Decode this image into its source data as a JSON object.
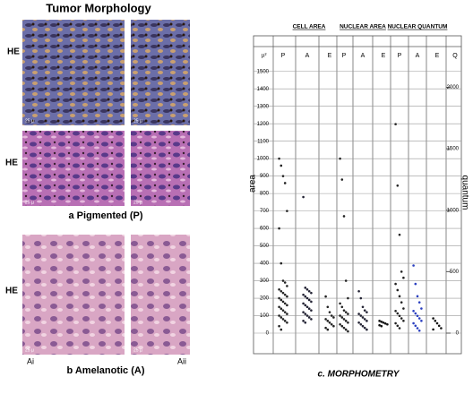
{
  "figure": {
    "title": "Tumor Morphology",
    "row_labels": [
      "HE",
      "HE",
      "HE"
    ],
    "caption_a": "a Pigmented (P)",
    "caption_b": "b Amelanotic (A)",
    "sub_labels": [
      "Ai",
      "Aii"
    ],
    "scale_labels": [
      "25 µ",
      "25 µ",
      "25 µ",
      "25 µ",
      "25 µ",
      "25 µ"
    ]
  },
  "chart_data": {
    "type": "strip",
    "caption": "c. MORPHOMETRY",
    "ylabel": "area",
    "y2label": "quantum",
    "unit_label": "µ²",
    "y2_header": "Q",
    "groups": [
      "CELL AREA",
      "NUCLEAR AREA",
      "NUCLEAR QUANTUM"
    ],
    "ylim": [
      0,
      1550
    ],
    "yticks": [
      0,
      100,
      200,
      300,
      400,
      500,
      600,
      700,
      800,
      900,
      1000,
      1100,
      1200,
      1300,
      1400,
      1500
    ],
    "y2lim": [
      0,
      2200
    ],
    "y2ticks": [
      0,
      500,
      1000,
      1500,
      2000
    ],
    "columns": [
      {
        "label": "P",
        "color": "#222",
        "values": [
          1000,
          960,
          900,
          860,
          700,
          600,
          400,
          300,
          290,
          270,
          250,
          240,
          230,
          220,
          210,
          200,
          190,
          180,
          170,
          160,
          150,
          140,
          130,
          120,
          110,
          100,
          90,
          80,
          70,
          60,
          40,
          20
        ]
      },
      {
        "label": "A",
        "color": "#223",
        "values": [
          780,
          260,
          250,
          240,
          230,
          220,
          210,
          200,
          190,
          180,
          170,
          160,
          150,
          140,
          130,
          120,
          110,
          100,
          90,
          80,
          70,
          60
        ]
      },
      {
        "label": "E",
        "color": "#222",
        "values": [
          210,
          150,
          120,
          100,
          90,
          80,
          70,
          60,
          50,
          40,
          30,
          20
        ]
      },
      {
        "label": "P",
        "color": "#222",
        "values": [
          1000,
          880,
          670,
          300,
          200,
          170,
          150,
          130,
          120,
          110,
          100,
          90,
          80,
          70,
          60,
          50,
          40,
          30,
          20,
          10
        ]
      },
      {
        "label": "A",
        "color": "#223",
        "values": [
          240,
          200,
          150,
          130,
          120,
          110,
          100,
          90,
          80,
          70,
          60,
          50,
          40,
          30,
          20
        ]
      },
      {
        "label": "E",
        "color": "#111",
        "values": [
          70,
          65,
          60,
          55,
          50,
          45,
          40
        ]
      },
      {
        "label": "P",
        "color": "#222",
        "axis": "y2",
        "values": [
          1700,
          1200,
          800,
          500,
          450,
          400,
          350,
          300,
          250,
          200,
          180,
          160,
          140,
          120,
          100,
          80,
          60,
          40
        ]
      },
      {
        "label": "A",
        "color": "#2a3fc0",
        "axis": "y2",
        "values": [
          550,
          400,
          300,
          250,
          200,
          180,
          160,
          140,
          120,
          100,
          80,
          60,
          40,
          20
        ]
      },
      {
        "label": "E",
        "color": "#111",
        "axis": "y2",
        "values": [
          120,
          100,
          80,
          60,
          40,
          30
        ]
      }
    ]
  }
}
